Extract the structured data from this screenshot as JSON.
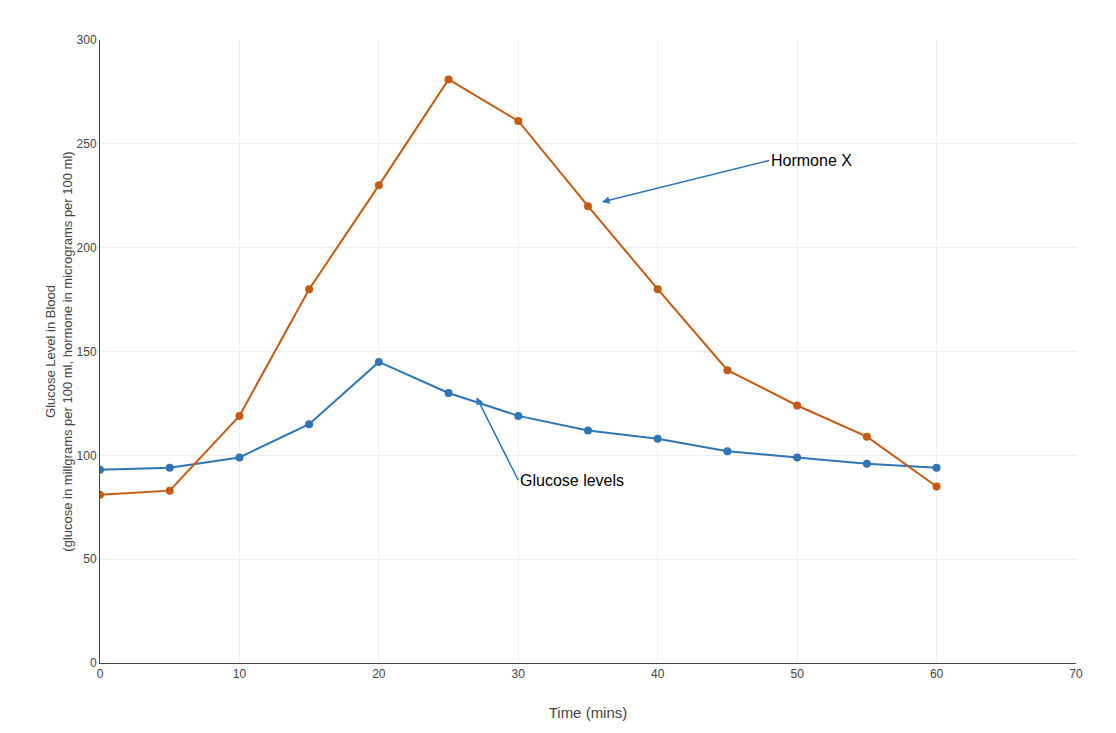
{
  "chart_data": {
    "type": "line",
    "x": [
      0,
      5,
      10,
      15,
      20,
      25,
      30,
      35,
      40,
      45,
      50,
      55,
      60
    ],
    "series": [
      {
        "color": "#2e75b6",
        "marker": "circle",
        "values": [
          93,
          94,
          99,
          115,
          145,
          130,
          119,
          112,
          108,
          102,
          99,
          96,
          94
        ]
      },
      {
        "color": "#c55a11",
        "marker": "circle",
        "values": [
          81,
          83,
          119,
          180,
          230,
          281,
          261,
          220,
          180,
          141,
          124,
          109,
          85
        ]
      }
    ],
    "xlabel": "Time (mins)",
    "ylabel": "Glucose Level in Blood\n(glucose in millgrams per 100 ml, hormone in micrograms per 100 ml)",
    "xlim": [
      0,
      70
    ],
    "ylim": [
      0,
      300
    ],
    "xticks": [
      0,
      10,
      20,
      30,
      40,
      50,
      60,
      70
    ],
    "yticks": [
      0,
      50,
      100,
      150,
      200,
      250,
      300
    ],
    "grid": true,
    "annotations": [
      {
        "text": "Hormone X",
        "x": 36,
        "y": 222,
        "text_x": 48,
        "text_y": 242,
        "color": "#2e75b6"
      },
      {
        "text": "Glucose levels",
        "x": 27,
        "y": 128,
        "text_x": 30,
        "text_y": 88,
        "color": "#2e75b6"
      }
    ]
  }
}
